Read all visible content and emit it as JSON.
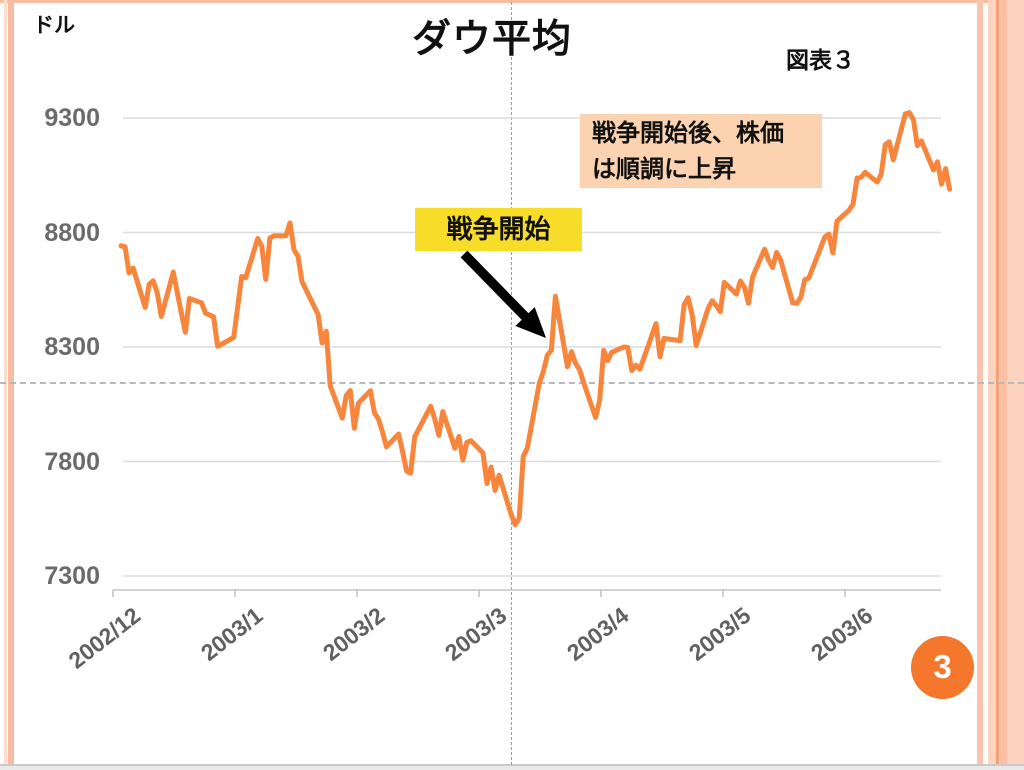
{
  "slide": {
    "y_axis_unit": "ドル",
    "title": "ダウ平均",
    "figure_label": "図表３",
    "page_number": "3",
    "annotations": {
      "war_start_label": "戦争開始",
      "after_war_line1": "戦争開始後、株価",
      "after_war_line2": "は順調に上昇"
    },
    "colors": {
      "line": "#F7853C",
      "yellow_box": "#F7DC28",
      "peach_box": "#FBD3B1",
      "page_circle": "#F4772C",
      "stripe": "#F8BCA0",
      "gridline": "#DCDCDC",
      "axis": "#C3C3C3",
      "axis_text": "#6b6b6b"
    }
  },
  "chart_data": {
    "type": "line",
    "title": "ダウ平均",
    "ylabel": "ドル",
    "xlabel": "",
    "ylim": [
      7300,
      9300
    ],
    "grid": true,
    "legend": false,
    "y_ticks": [
      9300,
      8800,
      8300,
      7800,
      7300
    ],
    "x_ticks": [
      "2002/12",
      "2003/1",
      "2003/2",
      "2003/3",
      "2003/4",
      "2003/5",
      "2003/6"
    ],
    "series": [
      {
        "name": "ダウ平均",
        "dates": [
          "12/3",
          "12/4",
          "12/5",
          "12/6",
          "12/9",
          "12/10",
          "12/11",
          "12/12",
          "12/13",
          "12/16",
          "12/17",
          "12/18",
          "12/19",
          "12/20",
          "12/23",
          "12/24",
          "12/26",
          "12/27",
          "12/30",
          "12/31",
          "1/2",
          "1/3",
          "1/6",
          "1/7",
          "1/8",
          "1/9",
          "1/10",
          "1/13",
          "1/14",
          "1/15",
          "1/16",
          "1/17",
          "1/21",
          "1/22",
          "1/23",
          "1/24",
          "1/27",
          "1/28",
          "1/29",
          "1/30",
          "1/31",
          "2/3",
          "2/4",
          "2/5",
          "2/6",
          "2/7",
          "2/10",
          "2/11",
          "2/12",
          "2/13",
          "2/14",
          "2/18",
          "2/19",
          "2/20",
          "2/21",
          "2/24",
          "2/25",
          "2/26",
          "2/27",
          "2/28",
          "3/3",
          "3/4",
          "3/5",
          "3/6",
          "3/7",
          "3/10",
          "3/11",
          "3/12",
          "3/13",
          "3/14",
          "3/17",
          "3/18",
          "3/19",
          "3/20",
          "3/21",
          "3/24",
          "3/25",
          "3/26",
          "3/27",
          "3/28",
          "3/31",
          "4/1",
          "4/2",
          "4/3",
          "4/4",
          "4/7",
          "4/8",
          "4/9",
          "4/10",
          "4/11",
          "4/14",
          "4/15",
          "4/16",
          "4/17",
          "4/21",
          "4/22",
          "4/23",
          "4/24",
          "4/25",
          "4/28",
          "4/29",
          "4/30",
          "5/1",
          "5/2",
          "5/5",
          "5/6",
          "5/7",
          "5/8",
          "5/9",
          "5/12",
          "5/13",
          "5/14",
          "5/15",
          "5/16",
          "5/19",
          "5/20",
          "5/21",
          "5/22",
          "5/23",
          "5/27",
          "5/28",
          "5/29",
          "5/30",
          "6/2",
          "6/3",
          "6/4",
          "6/5",
          "6/6",
          "6/9",
          "6/10",
          "6/11",
          "6/12",
          "6/13",
          "6/16",
          "6/17",
          "6/18",
          "6/19",
          "6/20",
          "6/23",
          "6/24",
          "6/25",
          "6/26",
          "6/27"
        ],
        "values": [
          8742,
          8737,
          8623,
          8645,
          8473,
          8574,
          8589,
          8538,
          8433,
          8627,
          8535,
          8447,
          8364,
          8512,
          8493,
          8448,
          8432,
          8303,
          8332,
          8342,
          8608,
          8602,
          8774,
          8740,
          8595,
          8776,
          8785,
          8786,
          8842,
          8724,
          8697,
          8586,
          8442,
          8318,
          8369,
          8131,
          7990,
          8089,
          8110,
          7945,
          8054,
          8109,
          8013,
          7985,
          7929,
          7864,
          7920,
          7843,
          7758,
          7749,
          7908,
          8041,
          7985,
          7914,
          8018,
          7858,
          7909,
          7806,
          7884,
          7891,
          7837,
          7704,
          7776,
          7674,
          7740,
          7568,
          7524,
          7552,
          7821,
          7859,
          8141,
          8194,
          8265,
          8286,
          8521,
          8214,
          8280,
          8229,
          8201,
          8145,
          7992,
          8069,
          8285,
          8240,
          8277,
          8300,
          8298,
          8197,
          8221,
          8203,
          8351,
          8402,
          8257,
          8337,
          8328,
          8484,
          8515,
          8440,
          8306,
          8471,
          8502,
          8480,
          8454,
          8582,
          8531,
          8588,
          8560,
          8491,
          8605,
          8727,
          8679,
          8647,
          8713,
          8679,
          8493,
          8491,
          8516,
          8594,
          8601,
          8781,
          8793,
          8711,
          8850,
          8897,
          8923,
          9038,
          9041,
          9063,
          9020,
          9054,
          9183,
          9196,
          9117,
          9318,
          9323,
          9293,
          9179,
          9200,
          9073,
          9109,
          9011,
          9079,
          8989
        ]
      }
    ],
    "annotations": [
      {
        "text": "戦争開始",
        "style": "yellow-box",
        "arrow_points_to": "mid-March 2003 rally"
      },
      {
        "text": "戦争開始後、株価は順調に上昇",
        "style": "peach-box"
      }
    ]
  }
}
